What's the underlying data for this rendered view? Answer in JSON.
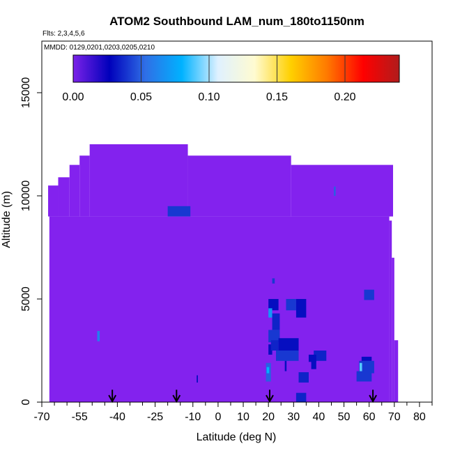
{
  "chart_data": {
    "type": "heatmap",
    "title": "ATOM2 Southbound LAM_num_180to1150nm",
    "flights_label": "Flts: 2,3,4,5,6",
    "dates_label": "MMDD: 0129,0201,0203,0205,0210",
    "xlabel": "Latitude (deg N)",
    "ylabel": "Altitude (m)",
    "xlim": [
      -70,
      85
    ],
    "ylim": [
      0,
      17500
    ],
    "x_ticks": [
      -70,
      -55,
      -40,
      -25,
      -10,
      0,
      10,
      20,
      30,
      40,
      50,
      60,
      70,
      80
    ],
    "x_tick_labels": [
      "-70",
      "-55",
      "-40",
      "-25",
      "-10",
      "0",
      "10",
      "20",
      "30",
      "40",
      "50",
      "60",
      "70",
      "80"
    ],
    "x_minor_ticks": [
      -65,
      -60,
      -50,
      -45,
      -35,
      -30,
      -20,
      -15,
      -5,
      5,
      15,
      25,
      35,
      45,
      55,
      65,
      75,
      85
    ],
    "y_ticks": [
      0,
      5000,
      10000,
      15000
    ],
    "y_tick_labels": [
      "0",
      "5000",
      "10000",
      "15000"
    ],
    "colorbar": {
      "range": [
        0,
        0.24
      ],
      "ticks": [
        0,
        0.05,
        0.1,
        0.15,
        0.2
      ],
      "tick_labels": [
        "0.00",
        "0.05",
        "0.10",
        "0.15",
        "0.20"
      ],
      "colors": [
        "#7b22e8",
        "#0000bb",
        "#2f6fe6",
        "#00b2ff",
        "#dff1ff",
        "#fffbd1",
        "#ffd000",
        "#ff7a00",
        "#ff0000",
        "#b01c1c"
      ]
    },
    "background_value": 0.0,
    "background_color": "#8322ee",
    "coverage": [
      {
        "x0": -67.5,
        "x1": -63.5,
        "y0": 9000,
        "y1": 10500
      },
      {
        "x0": -63.5,
        "x1": -59,
        "y0": 9000,
        "y1": 10900
      },
      {
        "x0": -59,
        "x1": -55,
        "y0": 9000,
        "y1": 11500
      },
      {
        "x0": -55,
        "x1": -51,
        "y0": 9000,
        "y1": 11950
      },
      {
        "x0": -51,
        "x1": -12,
        "y0": 9000,
        "y1": 12500
      },
      {
        "x0": -12,
        "x1": 29,
        "y0": 9000,
        "y1": 11950
      },
      {
        "x0": 29,
        "x1": 69.5,
        "y0": 9000,
        "y1": 11500
      },
      {
        "x0": -67,
        "x1": 68,
        "y0": 0,
        "y1": 9000
      },
      {
        "x0": 68,
        "x1": 69,
        "y0": 0,
        "y1": 8800
      },
      {
        "x0": 69,
        "x1": 70,
        "y0": 0,
        "y1": 7000
      },
      {
        "x0": 70,
        "x1": 71.5,
        "y0": 0,
        "y1": 3000
      }
    ],
    "cells": [
      {
        "x0": -20,
        "x1": -11,
        "y0": 9000,
        "y1": 9500,
        "value": 0.04
      },
      {
        "x0": 46,
        "x1": 46.7,
        "y0": 10000,
        "y1": 10450,
        "value": 0.05
      },
      {
        "x0": -48,
        "x1": -47,
        "y0": 2950,
        "y1": 3450,
        "value": 0.06
      },
      {
        "x0": -8.5,
        "x1": -8,
        "y0": 950,
        "y1": 1300,
        "value": 0.03
      },
      {
        "x0": 21.5,
        "x1": 22.5,
        "y0": 5750,
        "y1": 6000,
        "value": 0.04
      },
      {
        "x0": 20,
        "x1": 24,
        "y0": 4450,
        "y1": 5000,
        "value": 0.03
      },
      {
        "x0": 27,
        "x1": 31,
        "y0": 4450,
        "y1": 5000,
        "value": 0.04
      },
      {
        "x0": 31,
        "x1": 35,
        "y0": 4100,
        "y1": 5000,
        "value": 0.03
      },
      {
        "x0": 20,
        "x1": 21.5,
        "y0": 4100,
        "y1": 4550,
        "value": 0.07
      },
      {
        "x0": 21.5,
        "x1": 24.5,
        "y0": 3500,
        "y1": 4300,
        "value": 0.035
      },
      {
        "x0": 20,
        "x1": 24.5,
        "y0": 2900,
        "y1": 3500,
        "value": 0.04
      },
      {
        "x0": 20,
        "x1": 21.5,
        "y0": 2300,
        "y1": 2800,
        "value": 0.03
      },
      {
        "x0": 21,
        "x1": 24,
        "y0": 2500,
        "y1": 3000,
        "value": 0.035
      },
      {
        "x0": 24,
        "x1": 32,
        "y0": 2500,
        "y1": 3100,
        "value": 0.03
      },
      {
        "x0": 23,
        "x1": 32,
        "y0": 2000,
        "y1": 2500,
        "value": 0.04
      },
      {
        "x0": 38,
        "x1": 43,
        "y0": 2000,
        "y1": 2500,
        "value": 0.035
      },
      {
        "x0": 36,
        "x1": 39,
        "y0": 1950,
        "y1": 2300,
        "value": 0.03
      },
      {
        "x0": 37,
        "x1": 39,
        "y0": 1600,
        "y1": 2000,
        "value": 0.03
      },
      {
        "x0": 19,
        "x1": 21,
        "y0": 1000,
        "y1": 1900,
        "value": 0.05
      },
      {
        "x0": 19.3,
        "x1": 20.3,
        "y0": 1400,
        "y1": 1700,
        "value": 0.08
      },
      {
        "x0": 26.5,
        "x1": 27.2,
        "y0": 1500,
        "y1": 2000,
        "value": 0.03
      },
      {
        "x0": 32,
        "x1": 36,
        "y0": 950,
        "y1": 1450,
        "value": 0.035
      },
      {
        "x0": 31,
        "x1": 35,
        "y0": 0,
        "y1": 450,
        "value": 0.035
      },
      {
        "x0": 56,
        "x1": 62,
        "y0": 1400,
        "y1": 2000,
        "value": 0.04
      },
      {
        "x0": 55,
        "x1": 61,
        "y0": 1000,
        "y1": 1500,
        "value": 0.04
      },
      {
        "x0": 56.2,
        "x1": 57.2,
        "y0": 1500,
        "y1": 1900,
        "value": 0.09
      },
      {
        "x0": 57,
        "x1": 61,
        "y0": 2000,
        "y1": 2200,
        "value": 0.03
      },
      {
        "x0": 58,
        "x1": 62,
        "y0": 4950,
        "y1": 5450,
        "value": 0.04
      }
    ],
    "arrows": [
      {
        "x": -42,
        "y_from": 600,
        "y_to": 0
      },
      {
        "x": -16.5,
        "y_from": 600,
        "y_to": 0
      },
      {
        "x": 20.5,
        "y_from": 600,
        "y_to": 0
      },
      {
        "x": 61.5,
        "y_from": 600,
        "y_to": 0
      }
    ]
  }
}
